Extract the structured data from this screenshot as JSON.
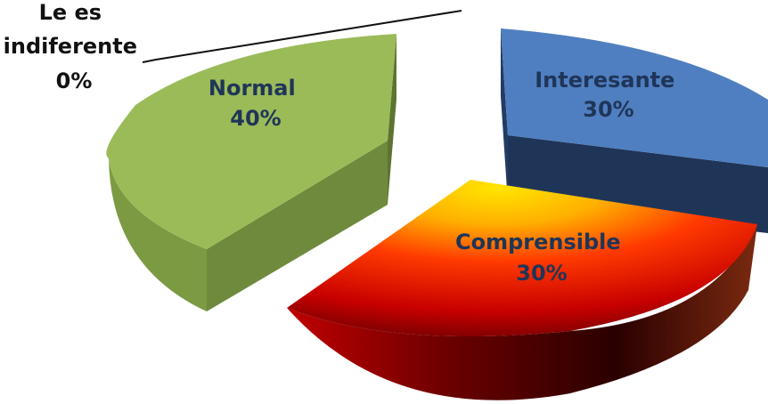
{
  "chart_data": {
    "type": "pie",
    "title": "",
    "style": "3d-exploded",
    "categories": [
      "Interesante",
      "Comprensible",
      "Normal",
      "Le es indiferente"
    ],
    "values": [
      30,
      30,
      40,
      0
    ],
    "value_labels": [
      "30%",
      "30%",
      "40%",
      "0%"
    ],
    "label_lines": [
      [
        "Interesante",
        "30%"
      ],
      [
        "Comprensible",
        "30%"
      ],
      [
        "Normal",
        "40%"
      ],
      [
        "Le es",
        "indiferente",
        "0%"
      ]
    ],
    "colors": {
      "interesante_top": "#4f7fc0",
      "interesante_side": "#1f3558",
      "comprensible_gradient": [
        "#ffe600",
        "#ff8a00",
        "#ff1a00",
        "#b00000",
        "#3a0000"
      ],
      "normal_top": "#9bbb59",
      "normal_side": "#6f8a3c",
      "label_on_blue": "#1f3558",
      "label_on_green": "#1f3558",
      "label_on_red": "#1f3558",
      "label_outside": "#111111"
    }
  }
}
